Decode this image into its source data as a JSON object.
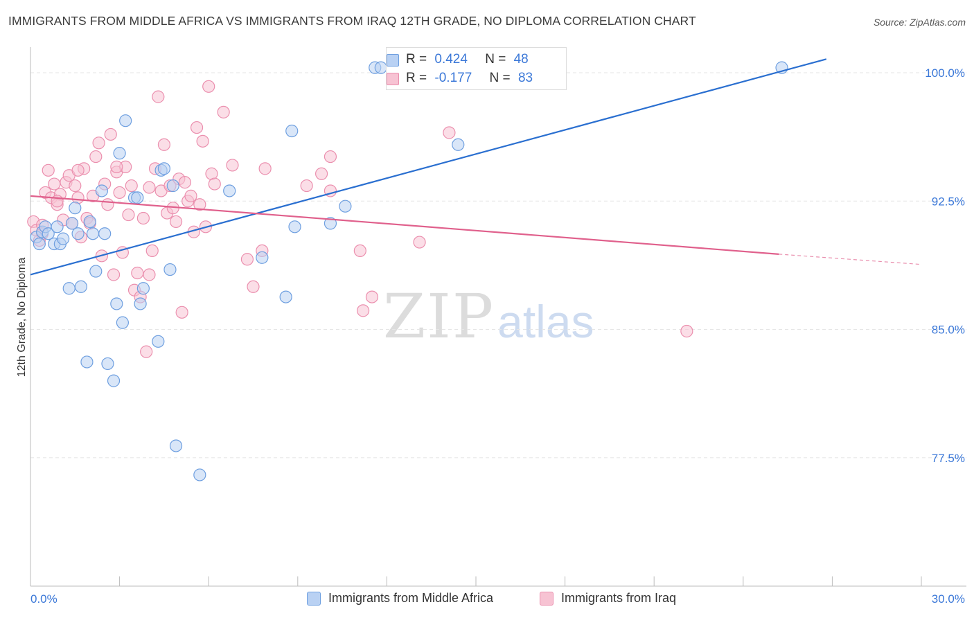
{
  "title": "IMMIGRANTS FROM MIDDLE AFRICA VS IMMIGRANTS FROM IRAQ 12TH GRADE, NO DIPLOMA CORRELATION CHART",
  "source": "Source: ZipAtlas.com",
  "watermark": {
    "zip": "ZIP",
    "atlas": "atlas"
  },
  "legend": {
    "r_label": "R =",
    "n_label": "N =",
    "rows": [
      {
        "r": "0.424",
        "n": "48"
      },
      {
        "r": "-0.177",
        "n": "83"
      }
    ]
  },
  "colors": {
    "blue_fill": "#b9d1f3",
    "blue_stroke": "#6e9fe0",
    "blue_line": "#2a6fd0",
    "pink_fill": "#f7c3d3",
    "pink_stroke": "#eb8fae",
    "pink_line": "#e0608c",
    "tick_label": "#3b78d8",
    "grid": "#e6e6e6"
  },
  "chart_data": {
    "type": "scatter",
    "title": "IMMIGRANTS FROM MIDDLE AFRICA VS IMMIGRANTS FROM IRAQ 12TH GRADE, NO DIPLOMA CORRELATION CHART",
    "xlabel": "",
    "ylabel": "12th Grade, No Diploma",
    "xlim": [
      0,
      30
    ],
    "ylim": [
      70,
      101.5
    ],
    "x_tick_labels": [
      "0.0%",
      "30.0%"
    ],
    "y_ticks": [
      77.5,
      85.0,
      92.5,
      100.0
    ],
    "y_tick_labels": [
      "77.5%",
      "85.0%",
      "92.5%",
      "100.0%"
    ],
    "grid": true,
    "legend_position": "top-center",
    "series": [
      {
        "name": "Immigrants from Middle Africa",
        "color": "blue",
        "trend": {
          "x": [
            0,
            26.8
          ],
          "y": [
            88.2,
            100.8
          ]
        },
        "points": [
          [
            0.2,
            90.4
          ],
          [
            0.3,
            90.0
          ],
          [
            0.4,
            90.7
          ],
          [
            0.5,
            91.0
          ],
          [
            0.6,
            90.6
          ],
          [
            0.8,
            90.0
          ],
          [
            0.9,
            91.0
          ],
          [
            1.0,
            90.0
          ],
          [
            1.1,
            90.3
          ],
          [
            1.3,
            87.4
          ],
          [
            1.4,
            91.2
          ],
          [
            1.5,
            92.1
          ],
          [
            1.6,
            90.6
          ],
          [
            1.7,
            87.5
          ],
          [
            1.9,
            83.1
          ],
          [
            2.0,
            91.3
          ],
          [
            2.1,
            90.6
          ],
          [
            2.2,
            88.4
          ],
          [
            2.4,
            93.1
          ],
          [
            2.5,
            90.6
          ],
          [
            2.6,
            83.0
          ],
          [
            2.8,
            82.0
          ],
          [
            2.9,
            86.5
          ],
          [
            3.0,
            95.3
          ],
          [
            3.1,
            85.4
          ],
          [
            3.2,
            97.2
          ],
          [
            3.5,
            92.7
          ],
          [
            3.6,
            92.7
          ],
          [
            3.7,
            86.5
          ],
          [
            3.8,
            87.4
          ],
          [
            4.3,
            84.3
          ],
          [
            4.4,
            94.3
          ],
          [
            4.5,
            94.4
          ],
          [
            4.7,
            88.5
          ],
          [
            4.8,
            93.4
          ],
          [
            4.9,
            78.2
          ],
          [
            5.7,
            76.5
          ],
          [
            6.7,
            93.1
          ],
          [
            7.8,
            89.2
          ],
          [
            8.6,
            86.9
          ],
          [
            8.8,
            96.6
          ],
          [
            8.9,
            91.0
          ],
          [
            10.1,
            91.2
          ],
          [
            10.6,
            92.2
          ],
          [
            11.6,
            100.3
          ],
          [
            11.8,
            100.3
          ],
          [
            14.4,
            95.8
          ],
          [
            25.3,
            100.3
          ]
        ]
      },
      {
        "name": "Immigrants from Iraq",
        "color": "pink",
        "trend": {
          "x": [
            0,
            25.2
          ],
          "y": [
            92.8,
            89.4
          ]
        },
        "trend_extension": {
          "x": [
            25.2,
            30
          ],
          "y": [
            89.4,
            88.8
          ]
        },
        "points": [
          [
            0.1,
            91.3
          ],
          [
            0.2,
            90.8
          ],
          [
            0.3,
            90.2
          ],
          [
            0.4,
            91.1
          ],
          [
            0.5,
            93.0
          ],
          [
            0.6,
            94.3
          ],
          [
            0.7,
            92.7
          ],
          [
            0.8,
            93.5
          ],
          [
            0.9,
            92.3
          ],
          [
            1.0,
            92.9
          ],
          [
            1.1,
            91.4
          ],
          [
            1.2,
            93.6
          ],
          [
            1.3,
            94.0
          ],
          [
            1.4,
            91.2
          ],
          [
            1.5,
            93.4
          ],
          [
            1.6,
            92.7
          ],
          [
            1.7,
            90.4
          ],
          [
            1.8,
            94.4
          ],
          [
            1.9,
            91.5
          ],
          [
            2.0,
            91.2
          ],
          [
            2.1,
            92.8
          ],
          [
            2.2,
            95.1
          ],
          [
            2.3,
            95.9
          ],
          [
            2.4,
            89.3
          ],
          [
            2.5,
            93.5
          ],
          [
            2.6,
            92.3
          ],
          [
            2.7,
            96.4
          ],
          [
            2.8,
            88.2
          ],
          [
            2.9,
            94.2
          ],
          [
            3.0,
            93.0
          ],
          [
            3.1,
            89.5
          ],
          [
            3.2,
            94.5
          ],
          [
            3.3,
            91.7
          ],
          [
            3.4,
            93.4
          ],
          [
            3.5,
            87.3
          ],
          [
            3.6,
            88.3
          ],
          [
            3.7,
            86.9
          ],
          [
            3.8,
            91.5
          ],
          [
            3.9,
            83.7
          ],
          [
            4.0,
            93.3
          ],
          [
            4.1,
            89.6
          ],
          [
            4.2,
            94.4
          ],
          [
            4.3,
            98.6
          ],
          [
            4.4,
            93.1
          ],
          [
            4.5,
            95.8
          ],
          [
            4.6,
            91.8
          ],
          [
            4.7,
            93.4
          ],
          [
            4.8,
            92.1
          ],
          [
            4.9,
            91.3
          ],
          [
            5.0,
            93.8
          ],
          [
            5.1,
            86.0
          ],
          [
            5.2,
            93.6
          ],
          [
            5.3,
            92.5
          ],
          [
            5.4,
            92.8
          ],
          [
            5.5,
            90.7
          ],
          [
            5.6,
            96.8
          ],
          [
            5.7,
            92.3
          ],
          [
            5.8,
            96.0
          ],
          [
            5.9,
            91.0
          ],
          [
            6.0,
            99.2
          ],
          [
            6.1,
            94.1
          ],
          [
            6.2,
            93.5
          ],
          [
            6.5,
            97.7
          ],
          [
            6.8,
            94.6
          ],
          [
            7.3,
            89.1
          ],
          [
            7.5,
            87.5
          ],
          [
            7.8,
            89.6
          ],
          [
            7.9,
            94.4
          ],
          [
            9.3,
            93.4
          ],
          [
            9.8,
            94.1
          ],
          [
            10.1,
            93.1
          ],
          [
            10.1,
            95.1
          ],
          [
            11.1,
            89.6
          ],
          [
            11.2,
            86.1
          ],
          [
            11.5,
            86.9
          ],
          [
            13.1,
            90.1
          ],
          [
            14.1,
            96.5
          ],
          [
            22.1,
            84.9
          ],
          [
            0.4,
            90.6
          ],
          [
            0.9,
            92.5
          ],
          [
            1.6,
            94.3
          ],
          [
            2.9,
            94.5
          ],
          [
            4.0,
            88.2
          ]
        ]
      }
    ]
  }
}
